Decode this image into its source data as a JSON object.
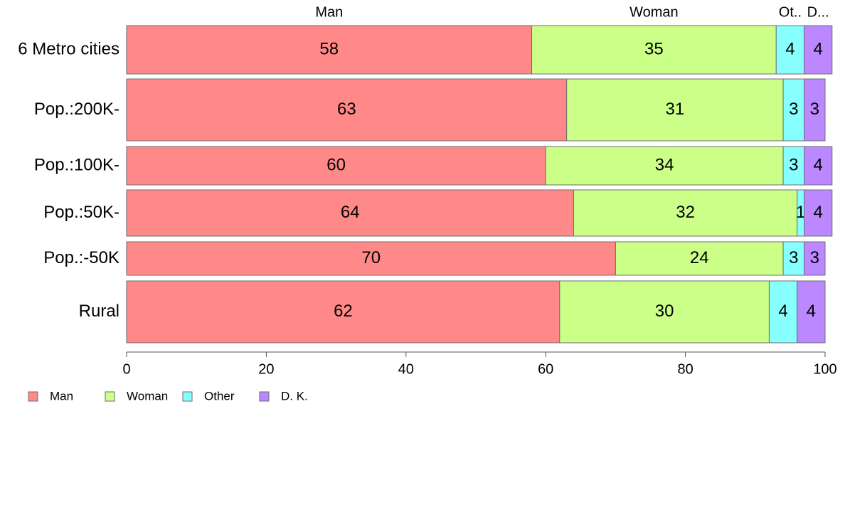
{
  "chart_data": {
    "type": "bar",
    "orientation": "horizontal",
    "stacked": true,
    "categories": [
      "6 Metro cities",
      "Pop.:200K-",
      "Pop.:100K-",
      "Pop.:50K-",
      "Pop.:-50K",
      "Rural"
    ],
    "series": [
      {
        "name": "Man",
        "color": "#FF8888",
        "values": [
          58,
          63,
          60,
          64,
          70,
          62
        ]
      },
      {
        "name": "Woman",
        "color": "#CCFF88",
        "values": [
          35,
          31,
          34,
          32,
          24,
          30
        ]
      },
      {
        "name": "Other",
        "color": "#88FFFF",
        "values": [
          4,
          3,
          3,
          1,
          3,
          4
        ]
      },
      {
        "name": "D. K.",
        "color": "#BB88FF",
        "values": [
          4,
          3,
          4,
          4,
          3,
          4
        ]
      }
    ],
    "column_headers": [
      "Man",
      "Woman",
      "Ot..",
      "D..."
    ],
    "xlim": [
      0,
      100
    ],
    "xticks": [
      0,
      20,
      40,
      60,
      80,
      100
    ],
    "legend_position": "bottom-left",
    "grid": false
  }
}
